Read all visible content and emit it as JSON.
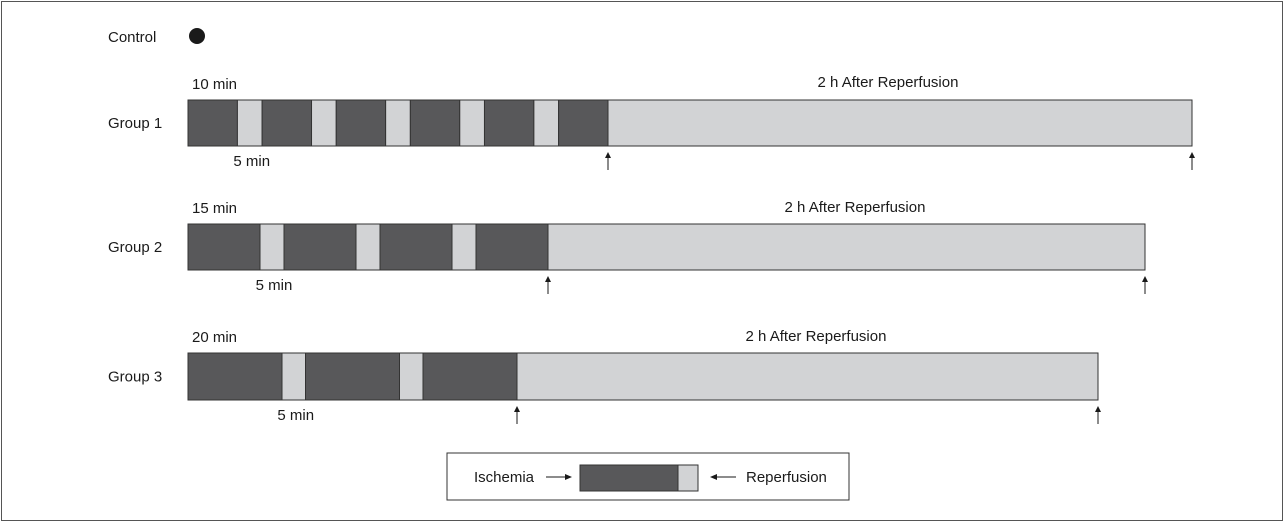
{
  "colors": {
    "ischemia": "#58585a",
    "reperfusion": "#d2d3d5",
    "outline": "#333333",
    "marker": "#1a1a1a"
  },
  "control": {
    "label": "Control"
  },
  "groups": [
    {
      "label": "Group 1",
      "ischemia_label": "10 min",
      "reperfusion_label": "5 min",
      "after_label": "2 h After Reperfusion",
      "ischemia_minutes": 10,
      "reperfusion_minutes": 5,
      "cycles": 6
    },
    {
      "label": "Group 2",
      "ischemia_label": "15 min",
      "reperfusion_label": "5 min",
      "after_label": "2 h After Reperfusion",
      "ischemia_minutes": 15,
      "reperfusion_minutes": 5,
      "cycles": 4
    },
    {
      "label": "Group 3",
      "ischemia_label": "20 min",
      "reperfusion_label": "5 min",
      "after_label": "2 h After Reperfusion",
      "ischemia_minutes": 20,
      "reperfusion_minutes": 5,
      "cycles": 3
    }
  ],
  "legend": {
    "ischemia_label": "Ischemia",
    "reperfusion_label": "Reperfusion"
  }
}
